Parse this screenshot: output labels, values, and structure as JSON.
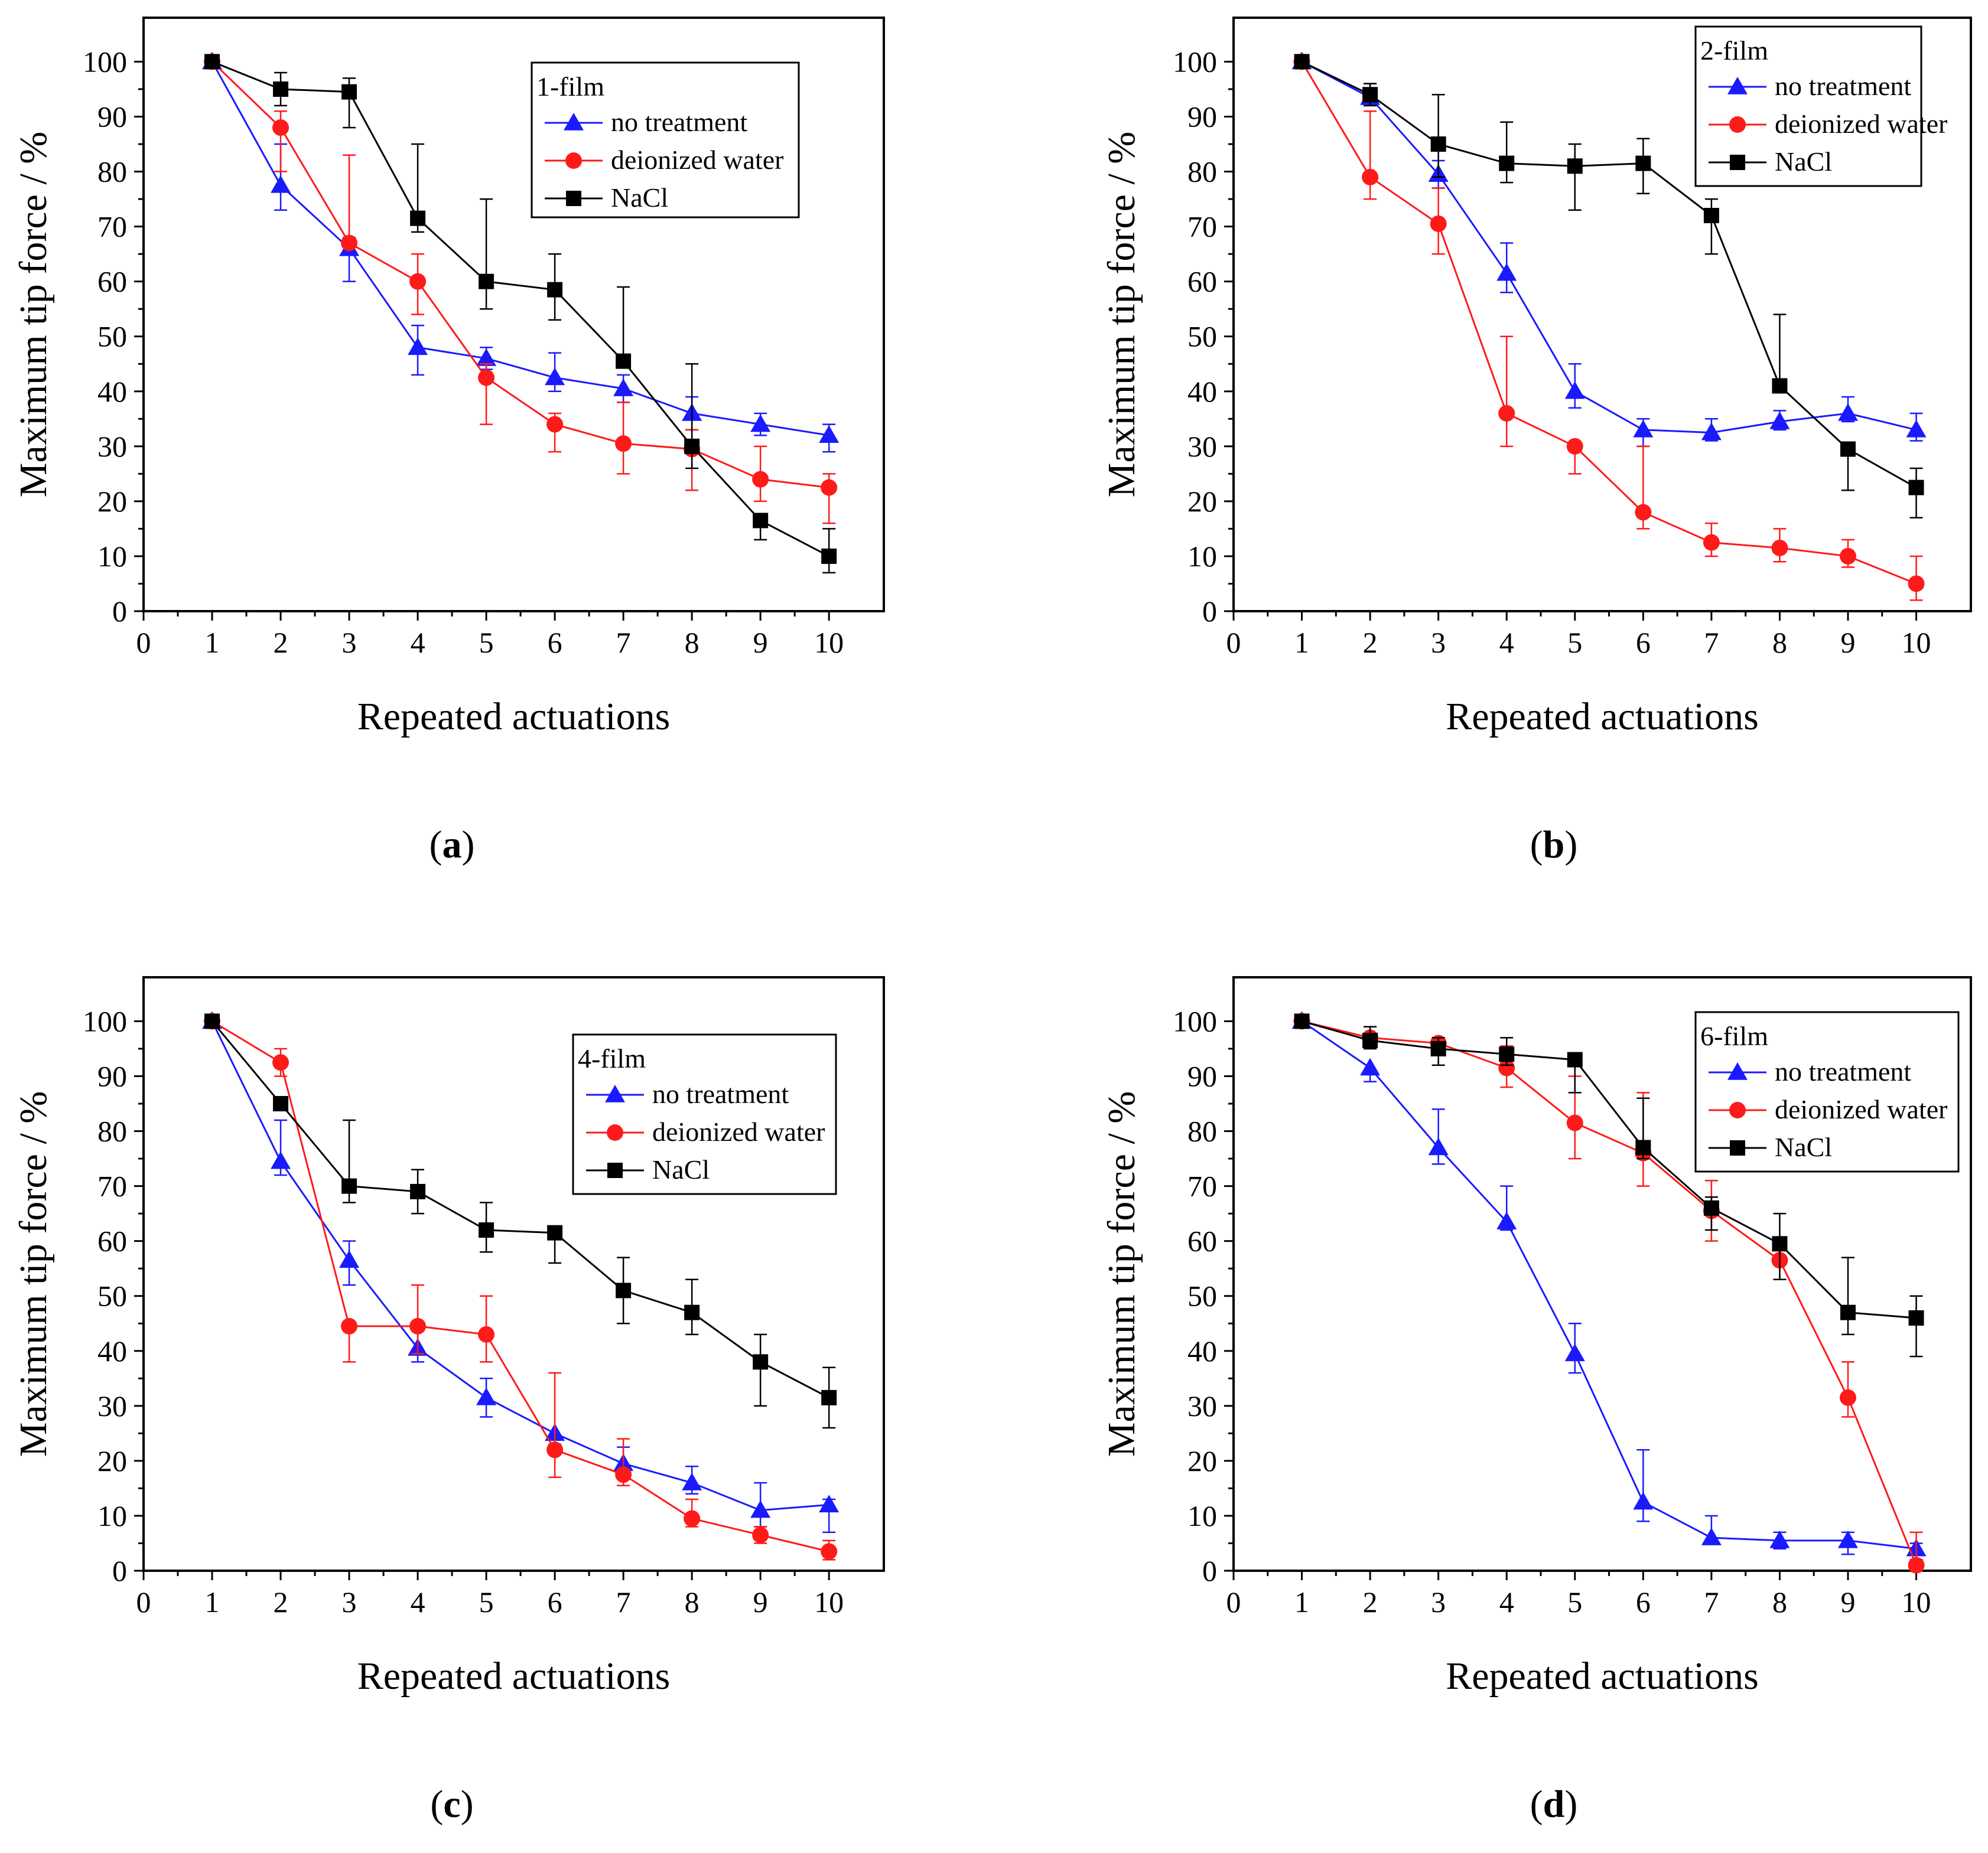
{
  "figure": {
    "colors": {
      "no_treatment": "#1a1aff",
      "deionized_water": "#ff1a1a",
      "nacl": "#000000",
      "axis": "#000000",
      "background": "#ffffff"
    }
  },
  "chart_data": [
    {
      "type": "line",
      "panel": "a",
      "panel_label_open": "(",
      "panel_label_letter": "a",
      "panel_label_close": ")",
      "xlabel": "Repeated actuations",
      "ylabel": "Maximum tip force  / %",
      "xlim": [
        0,
        10.8
      ],
      "ylim": [
        0,
        108
      ],
      "xticks": [
        0,
        1,
        2,
        3,
        4,
        5,
        6,
        7,
        8,
        9,
        10
      ],
      "yticks": [
        0,
        10,
        20,
        30,
        40,
        50,
        60,
        70,
        80,
        90,
        100
      ],
      "legend_title": "1-film",
      "legend_position": "top-right",
      "x": [
        1,
        2,
        3,
        4,
        5,
        6,
        7,
        8,
        9,
        10
      ],
      "series": [
        {
          "key": "no_treatment",
          "name": "no treatment",
          "marker": "triangle",
          "values": [
            100,
            77.5,
            66,
            48,
            46,
            42.5,
            40.5,
            36,
            34,
            32
          ],
          "err_hi": [
            0,
            7.5,
            2,
            4,
            2,
            4.5,
            2.5,
            3,
            2,
            2
          ],
          "err_lo": [
            0,
            4.5,
            6,
            5,
            2,
            2.5,
            2.5,
            3,
            2,
            3
          ]
        },
        {
          "key": "deionized_water",
          "name": "deionized water",
          "marker": "circle",
          "values": [
            100,
            88,
            67,
            60,
            42.5,
            34,
            30.5,
            29.5,
            24,
            22.5
          ],
          "err_hi": [
            0,
            3,
            16,
            5,
            2.5,
            2,
            7.5,
            3.5,
            6,
            2.5
          ],
          "err_lo": [
            0,
            8,
            0,
            6,
            8.5,
            5,
            5.5,
            7.5,
            4,
            6.5
          ]
        },
        {
          "key": "nacl",
          "name": "NaCl",
          "marker": "square",
          "values": [
            100,
            95,
            94.5,
            71.5,
            60,
            58.5,
            45.5,
            30,
            16.5,
            10
          ],
          "err_hi": [
            0,
            3,
            2.5,
            13.5,
            15,
            6.5,
            13.5,
            15,
            0,
            5
          ],
          "err_lo": [
            0,
            3,
            6.5,
            2.5,
            5,
            5.5,
            0,
            4,
            3.5,
            3
          ]
        }
      ]
    },
    {
      "type": "line",
      "panel": "b",
      "panel_label_open": "(",
      "panel_label_letter": "b",
      "panel_label_close": ")",
      "xlabel": "Repeated actuations",
      "ylabel": "Maximum tip force  / %",
      "xlim": [
        0,
        10.8
      ],
      "ylim": [
        0,
        108
      ],
      "xticks": [
        0,
        1,
        2,
        3,
        4,
        5,
        6,
        7,
        8,
        9,
        10
      ],
      "yticks": [
        0,
        10,
        20,
        30,
        40,
        50,
        60,
        70,
        80,
        90,
        100
      ],
      "legend_title": "2-film",
      "legend_position": "top-right",
      "x": [
        1,
        2,
        3,
        4,
        5,
        6,
        7,
        8,
        9,
        10
      ],
      "series": [
        {
          "key": "no_treatment",
          "name": "no treatment",
          "marker": "triangle",
          "values": [
            100,
            93.5,
            79.5,
            61.5,
            40,
            33,
            32.5,
            34.5,
            36,
            33
          ],
          "err_hi": [
            0,
            2.5,
            2.5,
            5.5,
            5,
            2,
            2.5,
            2,
            3,
            3
          ],
          "err_lo": [
            0,
            1.5,
            2.5,
            3.5,
            3,
            3,
            1.5,
            1.5,
            1.5,
            2
          ],
          "dummy": 0
        },
        {
          "key": "deionized_water",
          "name": "deionized water",
          "marker": "circle",
          "values": [
            100,
            79,
            70.5,
            36,
            30,
            18,
            12.5,
            11.5,
            10,
            5
          ],
          "err_hi": [
            0,
            12,
            6.5,
            14,
            0,
            12,
            3.5,
            3.5,
            3,
            5
          ],
          "err_lo": [
            0,
            4,
            5.5,
            6,
            5,
            3,
            2.5,
            2.5,
            2,
            3
          ],
          "dummy": 0
        },
        {
          "key": "nacl",
          "name": "NaCl",
          "marker": "square",
          "values": [
            100,
            94,
            85,
            81.5,
            81,
            81.5,
            72,
            41,
            29.5,
            22.5
          ],
          "err_hi": [
            0,
            2,
            9,
            7.5,
            4,
            4.5,
            3,
            13,
            0,
            3.5
          ],
          "err_lo": [
            0,
            2,
            6,
            3.5,
            8,
            5.5,
            7,
            0,
            7.5,
            5.5
          ],
          "dummy": 0
        }
      ]
    },
    {
      "type": "line",
      "panel": "c",
      "panel_label_open": "(",
      "panel_label_letter": "c",
      "panel_label_close": ")",
      "xlabel": "Repeated actuations",
      "ylabel": "Maximum tip force  / %",
      "xlim": [
        0,
        10.8
      ],
      "ylim": [
        0,
        108
      ],
      "xticks": [
        0,
        1,
        2,
        3,
        4,
        5,
        6,
        7,
        8,
        9,
        10
      ],
      "yticks": [
        0,
        10,
        20,
        30,
        40,
        50,
        60,
        70,
        80,
        90,
        100
      ],
      "legend_title": "4-film",
      "legend_position": "top-right",
      "x": [
        1,
        2,
        3,
        4,
        5,
        6,
        7,
        8,
        9,
        10
      ],
      "series": [
        {
          "key": "no_treatment",
          "name": "no treatment",
          "marker": "triangle",
          "values": [
            100,
            74.5,
            56.5,
            40.5,
            31.5,
            25,
            19.5,
            16,
            11,
            12
          ],
          "err_hi": [
            0,
            7.5,
            3.5,
            4,
            3.5,
            0,
            3,
            3,
            5,
            1
          ],
          "err_lo": [
            0,
            2.5,
            4.5,
            2.5,
            3.5,
            2,
            2,
            2,
            3,
            5
          ]
        },
        {
          "key": "deionized_water",
          "name": "deionized water",
          "marker": "circle",
          "values": [
            100,
            92.5,
            44.5,
            44.5,
            43,
            22,
            17.5,
            9.5,
            6.5,
            3.5
          ],
          "err_hi": [
            0,
            2.5,
            0,
            7.5,
            7,
            14,
            6.5,
            3.5,
            1.5,
            2
          ],
          "err_lo": [
            0,
            2.5,
            6.5,
            5,
            5,
            5,
            2,
            1.5,
            1.5,
            1.5
          ]
        },
        {
          "key": "nacl",
          "name": "NaCl",
          "marker": "square",
          "values": [
            100,
            85,
            70,
            69,
            62,
            61.5,
            51,
            47,
            38,
            31.5
          ],
          "err_hi": [
            0,
            0,
            12,
            4,
            5,
            0,
            6,
            6,
            5,
            5.5
          ],
          "err_lo": [
            0,
            0,
            3,
            4,
            4,
            5.5,
            6,
            4,
            8,
            5.5
          ]
        }
      ]
    },
    {
      "type": "line",
      "panel": "d",
      "panel_label_open": "(",
      "panel_label_letter": "d",
      "panel_label_close": ")",
      "xlabel": "Repeated actuations",
      "ylabel": "Maximum tip force / %",
      "xlim": [
        0,
        10.8
      ],
      "ylim": [
        0,
        108
      ],
      "xticks": [
        0,
        1,
        2,
        3,
        4,
        5,
        6,
        7,
        8,
        9,
        10
      ],
      "yticks": [
        0,
        10,
        20,
        30,
        40,
        50,
        60,
        70,
        80,
        90,
        100
      ],
      "legend_title": "6-film",
      "legend_position": "top-right",
      "x": [
        1,
        2,
        3,
        4,
        5,
        6,
        7,
        8,
        9,
        10
      ],
      "series": [
        {
          "key": "no_treatment",
          "name": "no treatment",
          "marker": "triangle",
          "values": [
            100,
            91.5,
            77,
            63.5,
            39.5,
            12.5,
            6,
            5.5,
            5.5,
            4
          ],
          "err_hi": [
            0,
            0,
            7,
            6.5,
            5.5,
            9.5,
            4,
            1.5,
            1.5,
            1
          ],
          "err_lo": [
            0,
            2.5,
            3,
            1.5,
            3.5,
            3.5,
            1,
            1.5,
            2.5,
            2
          ]
        },
        {
          "key": "deionized_water",
          "name": "deionized water",
          "marker": "circle",
          "values": [
            100,
            97,
            96,
            91.5,
            81.5,
            76,
            65.5,
            56.5,
            31.5,
            1
          ],
          "err_hi": [
            0,
            2,
            1,
            4,
            8.5,
            11,
            5.5,
            3.5,
            6.5,
            6
          ],
          "err_lo": [
            0,
            2,
            2,
            3.5,
            6.5,
            6,
            5.5,
            3.5,
            3.5,
            1
          ]
        },
        {
          "key": "nacl",
          "name": "NaCl",
          "marker": "square",
          "values": [
            100,
            96.5,
            95,
            94,
            93,
            77,
            66,
            59.5,
            47,
            46
          ],
          "err_hi": [
            0,
            2.5,
            2,
            3,
            0,
            9,
            2,
            5.5,
            10,
            4
          ],
          "err_lo": [
            0,
            1.5,
            3,
            2,
            6,
            2,
            4,
            6.5,
            4,
            7
          ]
        }
      ]
    }
  ]
}
